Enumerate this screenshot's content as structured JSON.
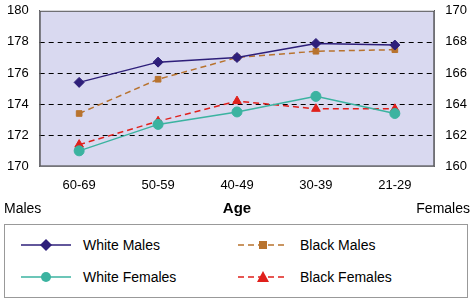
{
  "chart_data": {
    "type": "line",
    "xlabel": "Age",
    "ylabel": "Males",
    "y2label": "Females",
    "categories": [
      "60-69",
      "50-59",
      "40-49",
      "30-39",
      "21-29"
    ],
    "series": [
      {
        "name": "White Males",
        "color": "#2e1f7a",
        "marker": "diamond",
        "line_style": "solid",
        "axis": "y",
        "values": [
          175.4,
          176.7,
          177.0,
          177.9,
          177.8
        ]
      },
      {
        "name": "Black Males",
        "color": "#b8732e",
        "marker": "square",
        "line_style": "dashed",
        "axis": "y",
        "values": [
          173.4,
          175.6,
          177.0,
          177.4,
          177.5
        ]
      },
      {
        "name": "White Females",
        "color": "#3bb3a0",
        "marker": "circle",
        "line_style": "solid",
        "axis": "y2",
        "values": [
          161.0,
          162.7,
          163.5,
          164.5,
          163.4
        ]
      },
      {
        "name": "Black Females",
        "color": "#e0201b",
        "marker": "triangle",
        "line_style": "dashed",
        "axis": "y2",
        "values": [
          161.4,
          162.9,
          164.2,
          163.7,
          163.7
        ]
      }
    ],
    "ylim": [
      170,
      180
    ],
    "yticks": [
      170,
      172,
      174,
      176,
      178,
      180
    ],
    "y2lim": [
      160,
      170
    ],
    "y2ticks": [
      160,
      162,
      164,
      166,
      168,
      170
    ],
    "grid": true,
    "legend": "bottom"
  }
}
